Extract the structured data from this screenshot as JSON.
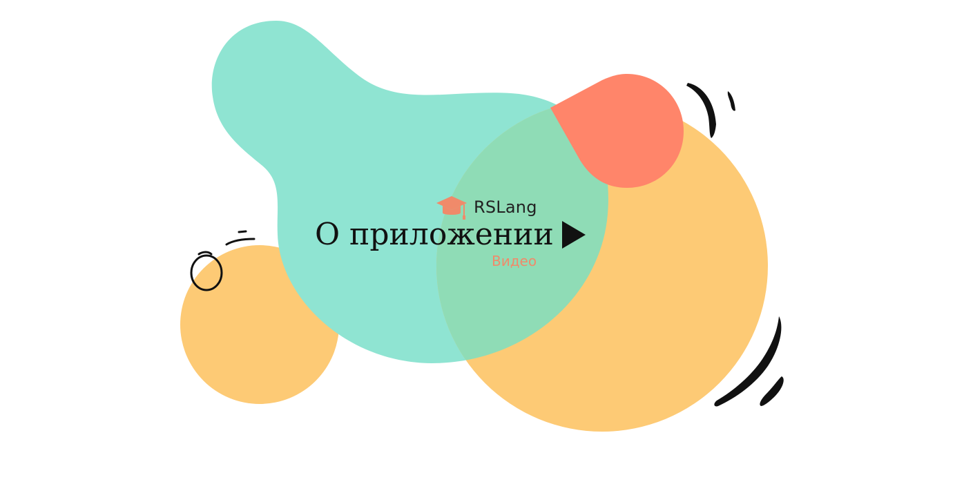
{
  "brand": {
    "name": "RSLang",
    "logo_icon": "graduation-cap-icon"
  },
  "hero": {
    "title": "О приложении",
    "video_link": "Видео",
    "play_icon": "play-icon"
  },
  "colors": {
    "teal_blob": "#8fe4d2",
    "yellow_circle": "#fdca75",
    "coral_circle": "#ff856a",
    "overlap_green": "#8fdcb6",
    "accent_text": "#f08a6a",
    "ink": "#111111"
  }
}
